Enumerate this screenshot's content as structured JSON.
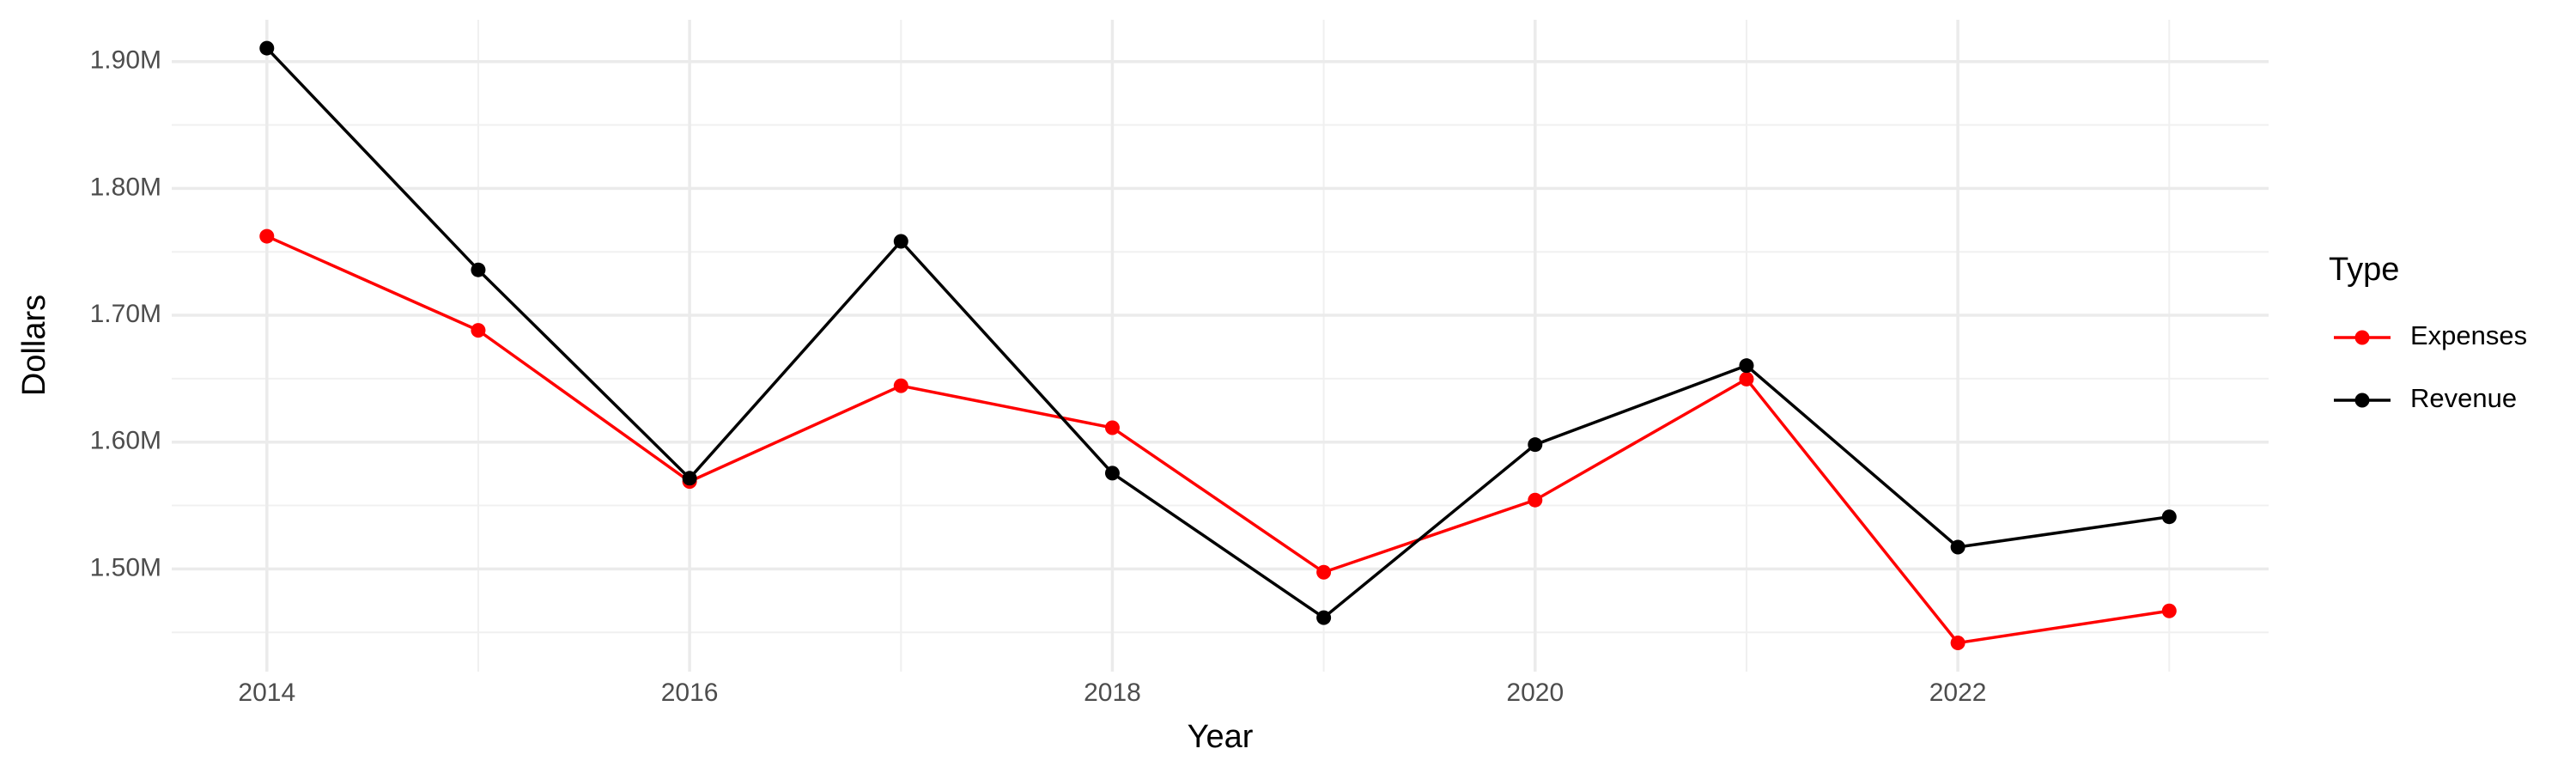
{
  "chart_data": {
    "type": "line",
    "x_label": "Year",
    "y_label": "Dollars",
    "legend_title": "Type",
    "x": [
      2014,
      2015,
      2016,
      2017,
      2018,
      2019,
      2020,
      2021,
      2022,
      2023
    ],
    "series": [
      {
        "name": "Expenses",
        "color": "#ff0000",
        "values": [
          1762300,
          1688100,
          1568900,
          1644400,
          1611300,
          1497400,
          1554300,
          1649700,
          1441700,
          1466900
        ]
      },
      {
        "name": "Revenue",
        "color": "#000000",
        "values": [
          1910600,
          1735800,
          1571500,
          1758300,
          1575500,
          1461600,
          1598000,
          1660300,
          1517200,
          1541100
        ]
      }
    ],
    "xlim": [
      2013.55,
      2023.47
    ],
    "xticks": [
      2014,
      2016,
      2018,
      2020,
      2022
    ],
    "ylim": [
      1419000,
      1933000
    ],
    "yticks": [
      {
        "value": 1500000,
        "label": "1.50M"
      },
      {
        "value": 1600000,
        "label": "1.60M"
      },
      {
        "value": 1700000,
        "label": "1.70M"
      },
      {
        "value": 1800000,
        "label": "1.80M"
      },
      {
        "value": 1900000,
        "label": "1.90M"
      }
    ],
    "grid": true,
    "minor_grid": true,
    "legend_position": "right"
  }
}
